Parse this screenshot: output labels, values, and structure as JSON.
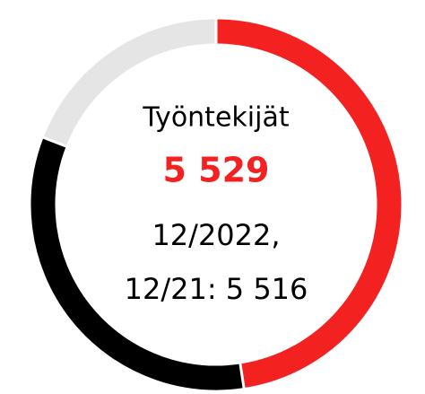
{
  "chart_data": {
    "type": "donut",
    "categories": [
      null,
      null,
      null
    ],
    "values": [
      47.6,
      33.3,
      19.1
    ],
    "colors": [
      "#f42121",
      "#000000",
      "#e5e5e5"
    ],
    "center_texts": [
      "Työntekijät",
      "5 529",
      "12/2022,",
      "12/21: 5 516"
    ],
    "highlight_color": "#f42121"
  }
}
